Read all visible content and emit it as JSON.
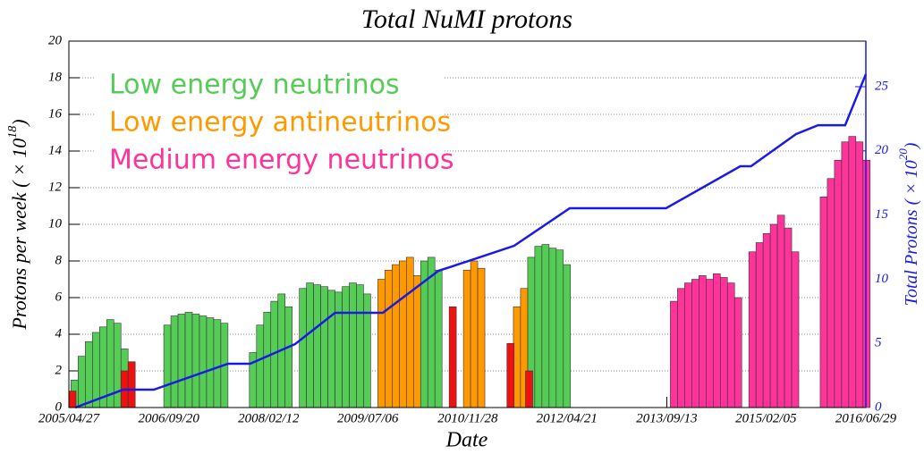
{
  "chart_data": {
    "type": "bar",
    "title": "Total NuMI protons",
    "xlabel": "Date",
    "ylabel": {
      "text": "Protons per week ( × 10",
      "sup": "18",
      "end": ")"
    },
    "y2label": {
      "text": "Total Protons ( × 10",
      "sup": "20",
      "end": ")"
    },
    "xlim": [
      2005.32,
      2016.49
    ],
    "xticks": [
      {
        "value": 2005.32,
        "label": "2005/04/27"
      },
      {
        "value": 2006.72,
        "label": "2006/09/20"
      },
      {
        "value": 2008.12,
        "label": "2008/02/12"
      },
      {
        "value": 2009.51,
        "label": "2009/07/06"
      },
      {
        "value": 2010.91,
        "label": "2010/11/28"
      },
      {
        "value": 2012.3,
        "label": "2012/04/21"
      },
      {
        "value": 2013.7,
        "label": "2013/09/13"
      },
      {
        "value": 2015.09,
        "label": "2015/02/05"
      },
      {
        "value": 2016.49,
        "label": "2016/06/29"
      }
    ],
    "ylim": [
      0,
      20
    ],
    "yticks": [
      0,
      2,
      4,
      6,
      8,
      10,
      12,
      14,
      16,
      18,
      20
    ],
    "y2lim": [
      0,
      28.55
    ],
    "y2ticks": [
      0,
      5,
      10,
      15,
      20,
      25
    ],
    "grid": true,
    "legend": "upper left",
    "series": [
      {
        "name": "Low energy neutrinos",
        "color": "#55cc55",
        "x": [
          2005.35,
          2005.45,
          2005.55,
          2005.65,
          2005.75,
          2005.85,
          2005.95,
          2006.05,
          2006.65,
          2006.75,
          2006.85,
          2006.95,
          2007.05,
          2007.15,
          2007.25,
          2007.35,
          2007.45,
          2007.85,
          2007.95,
          2008.05,
          2008.15,
          2008.25,
          2008.35,
          2008.55,
          2008.65,
          2008.75,
          2008.85,
          2008.95,
          2009.05,
          2009.15,
          2009.25,
          2009.35,
          2009.45,
          2010.25,
          2010.35,
          2010.45,
          2011.75,
          2011.85,
          2011.95,
          2012.05,
          2012.15,
          2012.25
        ],
        "values": [
          1.5,
          2.8,
          3.6,
          4.1,
          4.4,
          4.8,
          4.6,
          3.2,
          4.5,
          5.0,
          5.1,
          5.2,
          5.1,
          5.0,
          4.9,
          4.8,
          4.6,
          3.0,
          4.5,
          5.2,
          5.8,
          6.2,
          5.5,
          6.5,
          6.8,
          6.7,
          6.6,
          6.4,
          6.3,
          6.6,
          6.8,
          6.7,
          6.2,
          8.0,
          8.2,
          7.5,
          8.2,
          8.8,
          8.9,
          8.7,
          8.6,
          7.8
        ]
      },
      {
        "name": "Low energy antineutrinos",
        "color": "#ff9900",
        "x": [
          2009.65,
          2009.75,
          2009.85,
          2009.95,
          2010.05,
          2010.15,
          2010.85,
          2010.95,
          2011.05,
          2011.55,
          2011.65
        ],
        "values": [
          7.0,
          7.5,
          7.8,
          8.0,
          8.2,
          7.2,
          7.5,
          8.0,
          7.6,
          5.5,
          6.5
        ]
      },
      {
        "name": "Medium energy neutrinos",
        "color": "#ff3399",
        "x": [
          2013.75,
          2013.85,
          2013.95,
          2014.05,
          2014.15,
          2014.25,
          2014.35,
          2014.45,
          2014.55,
          2014.65,
          2014.85,
          2014.95,
          2015.05,
          2015.15,
          2015.25,
          2015.35,
          2015.45,
          2015.85,
          2015.95,
          2016.05,
          2016.15,
          2016.25,
          2016.35,
          2016.45
        ],
        "values": [
          5.8,
          6.5,
          6.8,
          7.0,
          7.2,
          7.0,
          7.3,
          7.1,
          6.8,
          6.0,
          8.5,
          9.0,
          9.5,
          10.0,
          10.5,
          9.8,
          8.5,
          11.5,
          12.5,
          13.5,
          14.5,
          14.8,
          14.5,
          13.5
        ]
      },
      {
        "color": "#ee1111",
        "x": [
          2005.32,
          2006.05,
          2006.15,
          2010.65,
          2011.46,
          2011.72
        ],
        "values": [
          0.9,
          2.0,
          2.5,
          5.5,
          3.5,
          2.0
        ]
      },
      {
        "type": "line",
        "axis": "y2",
        "color": "#1a1ae6",
        "x": [
          2005.41,
          2006.08,
          2006.51,
          2007.55,
          2007.86,
          2008.49,
          2009.05,
          2009.72,
          2010.5,
          2011.0,
          2011.56,
          2012.34,
          2013.69,
          2014.73,
          2014.88,
          2015.51,
          2015.82,
          2016.2,
          2016.49
        ],
        "values": [
          0,
          1.39,
          1.39,
          3.41,
          3.41,
          4.94,
          7.38,
          7.38,
          10.65,
          11.56,
          12.6,
          15.53,
          15.53,
          18.8,
          18.8,
          21.3,
          22.0,
          22.0,
          25.98
        ]
      }
    ]
  }
}
